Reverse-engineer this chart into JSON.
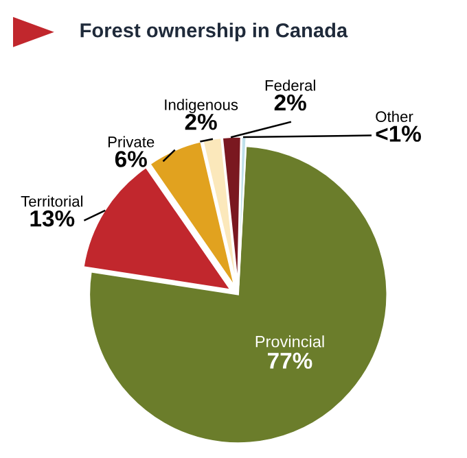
{
  "chart_data": {
    "type": "pie",
    "title": "Forest ownership in Canada",
    "categories": [
      "Provincial",
      "Territorial",
      "Private",
      "Indigenous",
      "Federal",
      "Other"
    ],
    "values": [
      77,
      13,
      6,
      2,
      2,
      0.5
    ],
    "value_labels": [
      "77%",
      "13%",
      "6%",
      "2%",
      "2%",
      "<1%"
    ],
    "colors": [
      "#6b7d2b",
      "#c1272d",
      "#e1a21f",
      "#fbe8bb",
      "#7a1820",
      "#bfe0ea"
    ]
  }
}
